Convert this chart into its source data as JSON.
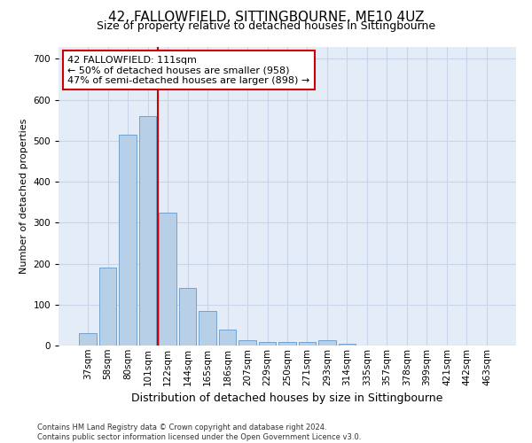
{
  "title": "42, FALLOWFIELD, SITTINGBOURNE, ME10 4UZ",
  "subtitle": "Size of property relative to detached houses in Sittingbourne",
  "xlabel": "Distribution of detached houses by size in Sittingbourne",
  "ylabel": "Number of detached properties",
  "footer1": "Contains HM Land Registry data © Crown copyright and database right 2024.",
  "footer2": "Contains public sector information licensed under the Open Government Licence v3.0.",
  "categories": [
    "37sqm",
    "58sqm",
    "80sqm",
    "101sqm",
    "122sqm",
    "144sqm",
    "165sqm",
    "186sqm",
    "207sqm",
    "229sqm",
    "250sqm",
    "271sqm",
    "293sqm",
    "314sqm",
    "335sqm",
    "357sqm",
    "378sqm",
    "399sqm",
    "421sqm",
    "442sqm",
    "463sqm"
  ],
  "values": [
    30,
    190,
    515,
    560,
    325,
    140,
    85,
    38,
    13,
    8,
    8,
    8,
    12,
    5,
    0,
    0,
    0,
    0,
    0,
    0,
    0
  ],
  "bar_color": "#b8cfe8",
  "bar_edge_color": "#6699cc",
  "vline_x": 3.5,
  "annotation_text": "42 FALLOWFIELD: 111sqm\n← 50% of detached houses are smaller (958)\n47% of semi-detached houses are larger (898) →",
  "annotation_box_color": "#ffffff",
  "annotation_box_edge_color": "#cc0000",
  "vline_color": "#cc0000",
  "ylim": [
    0,
    730
  ],
  "yticks": [
    0,
    100,
    200,
    300,
    400,
    500,
    600,
    700
  ],
  "grid_color": "#c8d4e8",
  "bg_color": "#e4ecf7",
  "title_fontsize": 11,
  "subtitle_fontsize": 9,
  "ylabel_fontsize": 8,
  "xlabel_fontsize": 9,
  "tick_fontsize": 7.5,
  "footer_fontsize": 6,
  "annotation_fontsize": 8
}
